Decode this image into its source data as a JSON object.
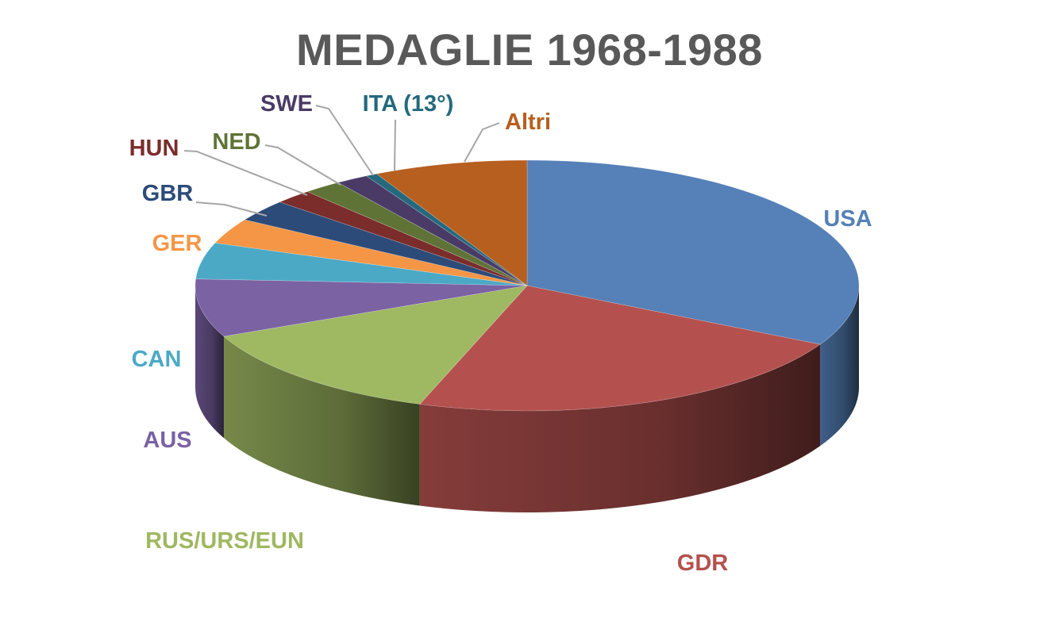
{
  "chart_data": {
    "type": "pie",
    "title": "MEDAGLIE 1968-1988",
    "three_d": true,
    "legend": "none",
    "slices": [
      {
        "label": "USA",
        "value": 35.0,
        "color": "#5580B8"
      },
      {
        "label": "GDR",
        "value": 24.0,
        "color": "#B4514E"
      },
      {
        "label": "RUS/URS/EUN",
        "value": 14.0,
        "color": "#9FB862"
      },
      {
        "label": "AUS",
        "value": 8.0,
        "color": "#7A62A3"
      },
      {
        "label": "CAN",
        "value": 5.0,
        "color": "#4BA9C6"
      },
      {
        "label": "GER",
        "value": 3.5,
        "color": "#F49646"
      },
      {
        "label": "GBR",
        "value": 3.0,
        "color": "#2C4B79"
      },
      {
        "label": "HUN",
        "value": 2.0,
        "color": "#7A2D2B"
      },
      {
        "label": "NED",
        "value": 2.0,
        "color": "#5F7337"
      },
      {
        "label": "SWE",
        "value": 1.7,
        "color": "#4A3B66"
      },
      {
        "label": "ITA (13°)",
        "value": 0.6,
        "color": "#24697E"
      },
      {
        "label": "Altri",
        "value": 8.0,
        "color": "#B65F1F"
      }
    ]
  }
}
